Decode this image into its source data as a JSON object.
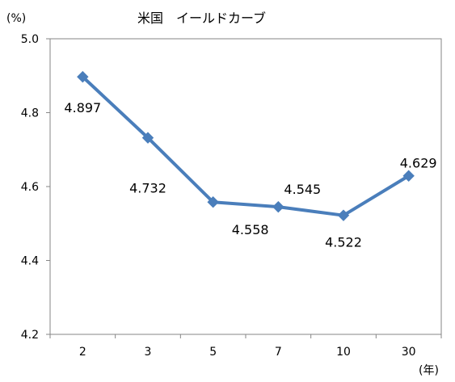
{
  "chart_data": {
    "type": "line",
    "title": "米国　イールドカーブ",
    "yunit": "(%)",
    "xunit": "(年)",
    "categories": [
      "2",
      "3",
      "5",
      "7",
      "10",
      "30"
    ],
    "series": [
      {
        "values": [
          4.897,
          4.732,
          4.558,
          4.545,
          4.522,
          4.629
        ],
        "labels": [
          "4.897",
          "4.732",
          "4.558",
          "4.545",
          "4.522",
          "4.629"
        ]
      }
    ],
    "ylim": [
      4.2,
      5.0
    ],
    "yticks": [
      "4.2",
      "4.4",
      "4.6",
      "4.8",
      "5.0"
    ],
    "grid": false,
    "legend": "none",
    "line_color": "#4a7ebb",
    "axis_color": "#868686"
  }
}
